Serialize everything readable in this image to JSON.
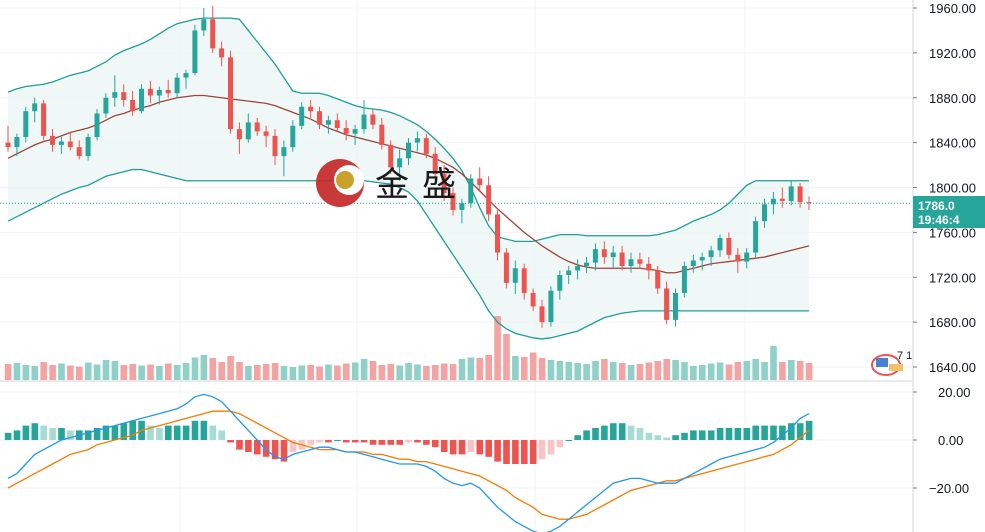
{
  "watermark": {
    "text_1": "金",
    "text_2": "盛"
  },
  "price_tag": {
    "value": "1786.0",
    "time": "19:46:4"
  },
  "indicator_badge": "7 1",
  "colors": {
    "up": "#26a69a",
    "down": "#ef5350",
    "vol_up": "#8fd1c8",
    "vol_down": "#f4a3a3",
    "band": "#1f9f94",
    "band_fill": "#e9f5f4",
    "basis": "#a0443c",
    "macd": "#2196f3",
    "signal": "#f57c00",
    "hist_up_strong": "#26a69a",
    "hist_up_weak": "#a8dbd4",
    "hist_down_strong": "#ef5350",
    "hist_down_weak": "#f8c4c4"
  },
  "chart_data": {
    "type": "candlestick",
    "price_axis": {
      "ticks": [
        "1960.00",
        "1920.00",
        "1880.00",
        "1840.00",
        "1800.00",
        "1760.00",
        "1720.00",
        "1680.00",
        "1640.00"
      ],
      "range": [
        1634,
        1968
      ]
    },
    "macd_axis": {
      "ticks": [
        "20.00",
        "0.00",
        "−20.00"
      ],
      "range": [
        -40,
        21
      ]
    },
    "candles": [
      [
        1840,
        1855,
        1832,
        1836
      ],
      [
        1836,
        1848,
        1828,
        1845
      ],
      [
        1845,
        1872,
        1840,
        1868
      ],
      [
        1868,
        1880,
        1858,
        1875
      ],
      [
        1875,
        1878,
        1842,
        1846
      ],
      [
        1846,
        1852,
        1832,
        1838
      ],
      [
        1838,
        1845,
        1830,
        1841
      ],
      [
        1841,
        1850,
        1833,
        1836
      ],
      [
        1836,
        1842,
        1825,
        1828
      ],
      [
        1828,
        1848,
        1824,
        1845
      ],
      [
        1845,
        1870,
        1842,
        1866
      ],
      [
        1866,
        1884,
        1862,
        1880
      ],
      [
        1880,
        1900,
        1872,
        1885
      ],
      [
        1885,
        1892,
        1872,
        1878
      ],
      [
        1878,
        1886,
        1864,
        1868
      ],
      [
        1868,
        1892,
        1866,
        1888
      ],
      [
        1888,
        1895,
        1875,
        1882
      ],
      [
        1882,
        1890,
        1874,
        1887
      ],
      [
        1887,
        1896,
        1880,
        1884
      ],
      [
        1884,
        1902,
        1880,
        1898
      ],
      [
        1898,
        1905,
        1888,
        1902
      ],
      [
        1902,
        1945,
        1900,
        1940
      ],
      [
        1940,
        1960,
        1935,
        1950
      ],
      [
        1950,
        1962,
        1920,
        1924
      ],
      [
        1924,
        1930,
        1908,
        1916
      ],
      [
        1916,
        1922,
        1848,
        1852
      ],
      [
        1852,
        1858,
        1830,
        1843
      ],
      [
        1843,
        1866,
        1840,
        1858
      ],
      [
        1858,
        1862,
        1846,
        1850
      ],
      [
        1850,
        1855,
        1836,
        1846
      ],
      [
        1846,
        1852,
        1820,
        1828
      ],
      [
        1828,
        1842,
        1810,
        1836
      ],
      [
        1836,
        1860,
        1832,
        1855
      ],
      [
        1855,
        1876,
        1852,
        1872
      ],
      [
        1872,
        1878,
        1862,
        1868
      ],
      [
        1868,
        1872,
        1852,
        1856
      ],
      [
        1856,
        1864,
        1848,
        1860
      ],
      [
        1860,
        1866,
        1850,
        1853
      ],
      [
        1853,
        1860,
        1842,
        1848
      ],
      [
        1848,
        1856,
        1838,
        1852
      ],
      [
        1852,
        1878,
        1848,
        1865
      ],
      [
        1865,
        1870,
        1852,
        1856
      ],
      [
        1856,
        1862,
        1834,
        1838
      ],
      [
        1838,
        1842,
        1812,
        1818
      ],
      [
        1818,
        1834,
        1806,
        1826
      ],
      [
        1826,
        1844,
        1820,
        1840
      ],
      [
        1840,
        1850,
        1832,
        1844
      ],
      [
        1844,
        1848,
        1826,
        1830
      ],
      [
        1830,
        1836,
        1806,
        1812
      ],
      [
        1812,
        1820,
        1788,
        1795
      ],
      [
        1795,
        1800,
        1775,
        1780
      ],
      [
        1780,
        1790,
        1768,
        1786
      ],
      [
        1786,
        1812,
        1782,
        1808
      ],
      [
        1808,
        1818,
        1796,
        1802
      ],
      [
        1802,
        1810,
        1770,
        1776
      ],
      [
        1776,
        1780,
        1735,
        1742
      ],
      [
        1742,
        1746,
        1710,
        1715
      ],
      [
        1715,
        1735,
        1705,
        1728
      ],
      [
        1728,
        1732,
        1700,
        1706
      ],
      [
        1706,
        1710,
        1690,
        1694
      ],
      [
        1694,
        1700,
        1675,
        1680
      ],
      [
        1680,
        1712,
        1676,
        1708
      ],
      [
        1708,
        1726,
        1700,
        1722
      ],
      [
        1722,
        1730,
        1714,
        1726
      ],
      [
        1726,
        1736,
        1718,
        1730
      ],
      [
        1730,
        1738,
        1724,
        1733
      ],
      [
        1733,
        1750,
        1726,
        1745
      ],
      [
        1745,
        1752,
        1732,
        1738
      ],
      [
        1738,
        1748,
        1728,
        1742
      ],
      [
        1742,
        1748,
        1726,
        1730
      ],
      [
        1730,
        1742,
        1724,
        1736
      ],
      [
        1736,
        1742,
        1728,
        1732
      ],
      [
        1732,
        1738,
        1718,
        1726
      ],
      [
        1726,
        1730,
        1705,
        1710
      ],
      [
        1710,
        1716,
        1678,
        1682
      ],
      [
        1682,
        1710,
        1676,
        1706
      ],
      [
        1706,
        1734,
        1702,
        1730
      ],
      [
        1730,
        1740,
        1724,
        1735
      ],
      [
        1735,
        1742,
        1726,
        1738
      ],
      [
        1738,
        1748,
        1730,
        1744
      ],
      [
        1744,
        1758,
        1738,
        1755
      ],
      [
        1755,
        1760,
        1736,
        1740
      ],
      [
        1740,
        1746,
        1724,
        1734
      ],
      [
        1734,
        1746,
        1728,
        1742
      ],
      [
        1742,
        1774,
        1738,
        1770
      ],
      [
        1770,
        1790,
        1764,
        1785
      ],
      [
        1785,
        1796,
        1776,
        1790
      ],
      [
        1790,
        1800,
        1782,
        1788
      ],
      [
        1788,
        1806,
        1784,
        1801
      ],
      [
        1801,
        1804,
        1782,
        1787
      ],
      [
        1787,
        1792,
        1780,
        1786
      ]
    ],
    "volume_dir": [
      0,
      1,
      1,
      1,
      0,
      0,
      1,
      0,
      0,
      1,
      1,
      1,
      1,
      0,
      0,
      1,
      0,
      1,
      0,
      1,
      1,
      1,
      1,
      0,
      0,
      0,
      0,
      1,
      0,
      0,
      0,
      1,
      1,
      1,
      0,
      0,
      1,
      0,
      0,
      1,
      1,
      0,
      0,
      0,
      1,
      1,
      1,
      0,
      0,
      0,
      0,
      1,
      1,
      0,
      0,
      0,
      0,
      1,
      0,
      0,
      0,
      1,
      1,
      1,
      1,
      1,
      1,
      0,
      1,
      0,
      1,
      0,
      0,
      0,
      0,
      1,
      1,
      1,
      1,
      1,
      1,
      0,
      0,
      1,
      1,
      1,
      1,
      0,
      1,
      0,
      0
    ],
    "volume": [
      32,
      34,
      30,
      28,
      36,
      30,
      33,
      29,
      27,
      35,
      31,
      40,
      38,
      30,
      32,
      29,
      31,
      28,
      33,
      30,
      34,
      45,
      50,
      44,
      36,
      48,
      36,
      28,
      30,
      32,
      34,
      28,
      26,
      29,
      30,
      27,
      31,
      29,
      33,
      35,
      42,
      38,
      30,
      32,
      29,
      34,
      31,
      28,
      30,
      33,
      32,
      42,
      45,
      44,
      50,
      128,
      92,
      48,
      46,
      55,
      44,
      40,
      38,
      36,
      34,
      32,
      38,
      42,
      36,
      34,
      30,
      32,
      35,
      38,
      42,
      40,
      36,
      28,
      30,
      33,
      35,
      31,
      36,
      38,
      42,
      36,
      68,
      36,
      40,
      38,
      34
    ],
    "basis": [
      1826,
      1830,
      1834,
      1838,
      1841,
      1843,
      1846,
      1849,
      1851,
      1853,
      1856,
      1860,
      1864,
      1866,
      1869,
      1871,
      1873,
      1876,
      1878,
      1880,
      1881,
      1882,
      1882,
      1881,
      1880,
      1879,
      1878,
      1877,
      1876,
      1875,
      1873,
      1870,
      1867,
      1864,
      1861,
      1857,
      1853,
      1850,
      1847,
      1845,
      1843,
      1841,
      1839,
      1837,
      1835,
      1833,
      1831,
      1829,
      1826,
      1822,
      1818,
      1812,
      1805,
      1797,
      1789,
      1781,
      1774,
      1767,
      1760,
      1754,
      1748,
      1743,
      1738,
      1734,
      1731,
      1729,
      1728,
      1728,
      1728,
      1728,
      1728,
      1728,
      1727,
      1726,
      1724,
      1724,
      1726,
      1728,
      1730,
      1732,
      1733,
      1734,
      1735,
      1736,
      1737,
      1738,
      1740,
      1742,
      1744,
      1746,
      1748
    ],
    "upper_band": [
      1885,
      1888,
      1890,
      1891,
      1892,
      1894,
      1897,
      1900,
      1902,
      1904,
      1908,
      1912,
      1918,
      1922,
      1925,
      1928,
      1932,
      1937,
      1942,
      1946,
      1948,
      1950,
      1951,
      1951,
      1951,
      1951,
      1950,
      1940,
      1930,
      1920,
      1910,
      1898,
      1886,
      1884,
      1884,
      1884,
      1882,
      1879,
      1876,
      1873,
      1871,
      1870,
      1869,
      1867,
      1864,
      1860,
      1856,
      1850,
      1843,
      1835,
      1826,
      1815,
      1800,
      1782,
      1766,
      1756,
      1754,
      1752,
      1752,
      1752,
      1754,
      1756,
      1758,
      1758,
      1758,
      1757,
      1757,
      1757,
      1757,
      1757,
      1757,
      1757,
      1757,
      1758,
      1760,
      1762,
      1766,
      1770,
      1773,
      1776,
      1780,
      1786,
      1794,
      1802,
      1806,
      1806,
      1806,
      1806,
      1806,
      1806,
      1806
    ],
    "lower_band": [
      1770,
      1774,
      1778,
      1782,
      1786,
      1790,
      1794,
      1797,
      1800,
      1802,
      1806,
      1810,
      1812,
      1814,
      1816,
      1816,
      1814,
      1812,
      1810,
      1808,
      1806,
      1806,
      1806,
      1806,
      1806,
      1806,
      1806,
      1806,
      1806,
      1806,
      1806,
      1806,
      1806,
      1806,
      1806,
      1806,
      1806,
      1806,
      1806,
      1806,
      1806,
      1805,
      1804,
      1803,
      1800,
      1796,
      1788,
      1776,
      1764,
      1752,
      1740,
      1728,
      1716,
      1704,
      1690,
      1680,
      1674,
      1670,
      1668,
      1666,
      1665,
      1666,
      1668,
      1670,
      1672,
      1676,
      1680,
      1684,
      1686,
      1688,
      1689,
      1690,
      1690,
      1690,
      1690,
      1690,
      1690,
      1690,
      1690,
      1690,
      1690,
      1690,
      1690,
      1690,
      1690,
      1690,
      1690,
      1690,
      1690,
      1690,
      1690
    ],
    "macd": [
      -16,
      -14,
      -10,
      -6,
      -4,
      -2,
      0,
      1,
      2,
      3,
      4,
      5,
      6,
      7,
      8,
      9,
      10,
      11,
      12,
      13,
      15,
      18,
      19,
      18,
      16,
      12,
      8,
      4,
      0,
      -4,
      -7,
      -8,
      -6,
      -5,
      -4,
      -3,
      -3,
      -4,
      -5,
      -5,
      -6,
      -7,
      -8,
      -9,
      -10,
      -10,
      -10,
      -11,
      -13,
      -16,
      -18,
      -19,
      -18,
      -20,
      -24,
      -28,
      -31,
      -34,
      -36,
      -38,
      -39,
      -38,
      -36,
      -33,
      -30,
      -27,
      -24,
      -21,
      -18,
      -17,
      -16,
      -16,
      -17,
      -18,
      -18,
      -18,
      -16,
      -14,
      -12,
      -10,
      -8,
      -7,
      -6,
      -5,
      -4,
      -3,
      -1,
      2,
      5,
      9,
      11
    ],
    "signal": [
      -20,
      -18,
      -16,
      -14,
      -12,
      -10,
      -8,
      -6,
      -5,
      -4,
      -2,
      -1,
      0,
      1,
      2,
      4,
      5,
      6,
      7,
      8,
      9,
      10,
      11,
      12,
      12,
      12,
      11,
      9,
      7,
      5,
      3,
      1,
      -1,
      -2,
      -3,
      -4,
      -4,
      -4,
      -5,
      -5,
      -5,
      -6,
      -6,
      -7,
      -8,
      -8,
      -9,
      -9,
      -10,
      -11,
      -12,
      -13,
      -14,
      -15,
      -17,
      -19,
      -21,
      -24,
      -26,
      -28,
      -31,
      -32,
      -33,
      -33,
      -32,
      -31,
      -29,
      -27,
      -25,
      -23,
      -21,
      -20,
      -19,
      -18,
      -17,
      -17,
      -16,
      -15,
      -14,
      -13,
      -12,
      -11,
      -10,
      -9,
      -8,
      -7,
      -6,
      -4,
      -2,
      1,
      4
    ],
    "histogram": [
      3,
      4,
      6,
      7,
      6,
      5,
      5,
      4,
      4,
      4,
      5,
      6,
      6,
      7,
      8,
      8,
      6,
      5,
      6,
      6,
      6,
      8,
      8,
      6,
      4,
      -1,
      -4,
      -5,
      -6,
      -7,
      -8,
      -9,
      -5,
      -4,
      -2,
      -1,
      -1,
      0,
      -1,
      -1,
      -1,
      -2,
      -2,
      -2,
      -2,
      -1,
      -1,
      -2,
      -3,
      -5,
      -6,
      -6,
      -5,
      -6,
      -7,
      -9,
      -10,
      -10,
      -10,
      -10,
      -8,
      -6,
      -3,
      0,
      2,
      4,
      5,
      6,
      7,
      7,
      6,
      5,
      3,
      2,
      1,
      2,
      3,
      4,
      4,
      4,
      5,
      5,
      5,
      5,
      6,
      6,
      6,
      6,
      7,
      7,
      8
    ]
  }
}
